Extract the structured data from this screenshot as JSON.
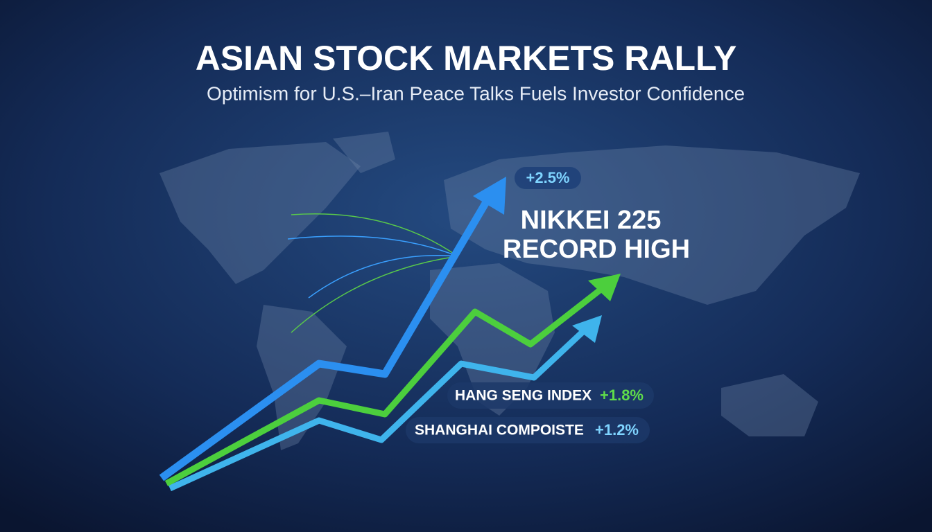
{
  "header": {
    "title": "ASIAN STOCK MARKETS RALLY",
    "subtitle": "Optimism for U.S.–Iran Peace Talks Fuels Investor Confidence"
  },
  "nikkei": {
    "change": "+2.5%",
    "line1": "NIKKEI 225",
    "line2": "RECORD HIGH"
  },
  "hang_seng": {
    "name": "HANG SENG INDEX",
    "change": "+1.8%"
  },
  "shanghai": {
    "name": "SHANGHAI COMPOISTE",
    "change": "+1.2%"
  }
}
